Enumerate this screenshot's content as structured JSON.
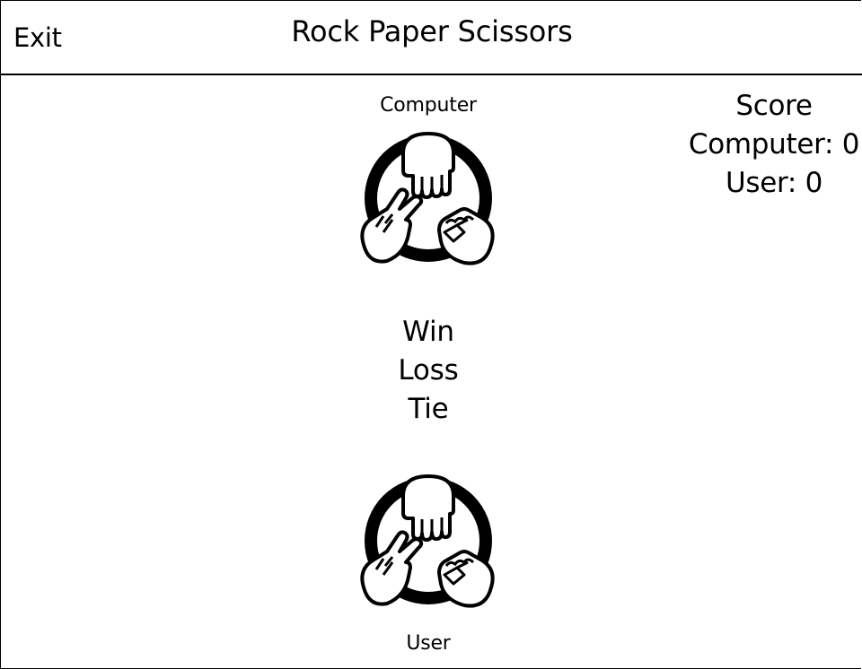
{
  "header": {
    "exit_label": "Exit",
    "title": "Rock Paper Scissors"
  },
  "computer": {
    "label": "Computer",
    "icon": "rock-paper-scissors-icon"
  },
  "outcomes": {
    "win_label": "Win",
    "loss_label": "Loss",
    "tie_label": "Tie"
  },
  "user": {
    "label": "User",
    "icon": "rock-paper-scissors-icon"
  },
  "score": {
    "title": "Score",
    "computer_prefix": "Computer: ",
    "computer_value": "0",
    "user_prefix": "User: ",
    "user_value": "0"
  }
}
